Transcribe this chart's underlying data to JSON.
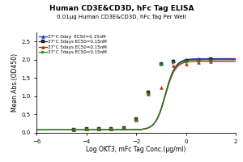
{
  "title": "Human CD3E&CD3D, hFc Tag ELISA",
  "subtitle": "0.01μg Human CD3E&CD3D, hFc Tag Per Well",
  "xlabel": "Log OKT3, mFc Tag Conc.(μg/ml)",
  "ylabel": "Mean Abs.(OD450)",
  "xlim": [
    -6,
    2
  ],
  "ylim": [
    0,
    2.75
  ],
  "xticks": [
    -6,
    -4,
    -2,
    0,
    2
  ],
  "yticks": [
    0.0,
    0.5,
    1.0,
    1.5,
    2.0,
    2.5
  ],
  "series": [
    {
      "label": "37°C 0day  EC50=0.15nM",
      "color": "#1530d0",
      "marker": "^",
      "ec50_log": -0.824,
      "hill": 2.2,
      "top": 2.03,
      "bottom": 0.08,
      "x_data": [
        -4.5,
        -4.0,
        -3.5,
        -3.0,
        -2.5,
        -2.0,
        -1.5,
        -1.0,
        -0.5,
        0.0,
        0.5,
        1.0
      ],
      "y_data": [
        0.09,
        0.1,
        0.11,
        0.12,
        0.13,
        0.38,
        1.1,
        1.9,
        1.97,
        2.0,
        2.02,
        2.03
      ]
    },
    {
      "label": "37°C 3days EC50=0.15nM",
      "color": "#222222",
      "marker": "s",
      "ec50_log": -0.824,
      "hill": 2.2,
      "top": 2.01,
      "bottom": 0.08,
      "x_data": [
        -4.5,
        -4.0,
        -3.5,
        -3.0,
        -2.5,
        -2.0,
        -1.5,
        -1.0,
        -0.5,
        0.0,
        0.5,
        1.0
      ],
      "y_data": [
        0.09,
        0.1,
        0.11,
        0.12,
        0.13,
        0.37,
        1.1,
        1.89,
        1.95,
        1.98,
        2.0,
        2.01
      ]
    },
    {
      "label": "37°C 5days EC50=0.15nM",
      "color": "#cc2200",
      "marker": "^",
      "ec50_log": -0.824,
      "hill": 2.2,
      "top": 1.96,
      "bottom": 0.08,
      "x_data": [
        -4.5,
        -4.0,
        -3.5,
        -3.0,
        -2.5,
        -2.0,
        -1.5,
        -1.0,
        -0.5,
        0.0,
        0.5,
        1.0
      ],
      "y_data": [
        0.09,
        0.1,
        0.11,
        0.12,
        0.13,
        0.35,
        1.07,
        1.25,
        1.83,
        1.89,
        1.93,
        1.95
      ]
    },
    {
      "label": "37°C 7days EC50=0.15nM",
      "color": "#228b22",
      "marker": ">",
      "ec50_log": -0.824,
      "hill": 2.2,
      "top": 2.0,
      "bottom": 0.08,
      "x_data": [
        -4.5,
        -4.0,
        -3.5,
        -3.0,
        -2.5,
        -2.0,
        -1.5,
        -1.0,
        -0.5,
        0.0,
        0.5,
        1.0
      ],
      "y_data": [
        0.09,
        0.1,
        0.11,
        0.12,
        0.13,
        0.36,
        1.08,
        1.88,
        1.93,
        1.97,
        1.99,
        2.0
      ]
    }
  ],
  "background_color": "#ffffff"
}
